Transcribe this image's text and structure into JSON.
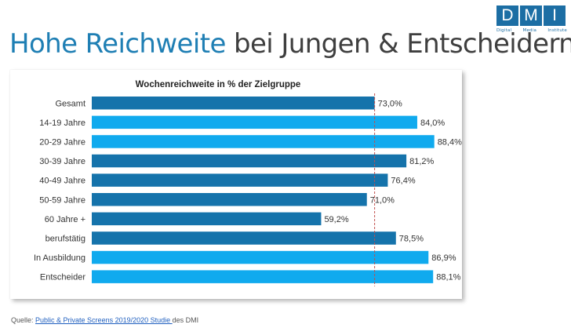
{
  "header": {
    "title_highlight": "Hohe Reichweite",
    "title_rest": "bei Jungen & Entscheidern"
  },
  "logo": {
    "letters": [
      "D",
      "M",
      "I"
    ],
    "sub_words": [
      "Digital",
      "Media",
      "Institute"
    ]
  },
  "chart_data": {
    "type": "bar",
    "orientation": "horizontal",
    "title": "Wochenreichweite in % der Zielgruppe",
    "xlabel": "",
    "ylabel": "",
    "xlim": [
      0,
      100
    ],
    "grid": false,
    "reference_line": 73.0,
    "categories": [
      "Gesamt",
      "14-19 Jahre",
      "20-29 Jahre",
      "30-39 Jahre",
      "40-49 Jahre",
      "50-59 Jahre",
      "60 Jahre +",
      "berufstätig",
      "In Ausbildung",
      "Entscheider"
    ],
    "values": [
      73.0,
      84.0,
      88.4,
      81.2,
      76.4,
      71.0,
      59.2,
      78.5,
      86.9,
      88.1
    ],
    "labels": [
      "73,0%",
      "84,0%",
      "88,4%",
      "81,2%",
      "76,4%",
      "71,0%",
      "59,2%",
      "78,5%",
      "86,9%",
      "88,1%"
    ],
    "colors": [
      "#1573ab",
      "#10aaee",
      "#10aaee",
      "#1573ab",
      "#1573ab",
      "#1573ab",
      "#1573ab",
      "#1573ab",
      "#10aaee",
      "#10aaee"
    ]
  },
  "footer": {
    "source_prefix": "Quelle: ",
    "source_link": "Public & Private Screens 2019/2020 Studie ",
    "source_suffix": "des DMI"
  }
}
